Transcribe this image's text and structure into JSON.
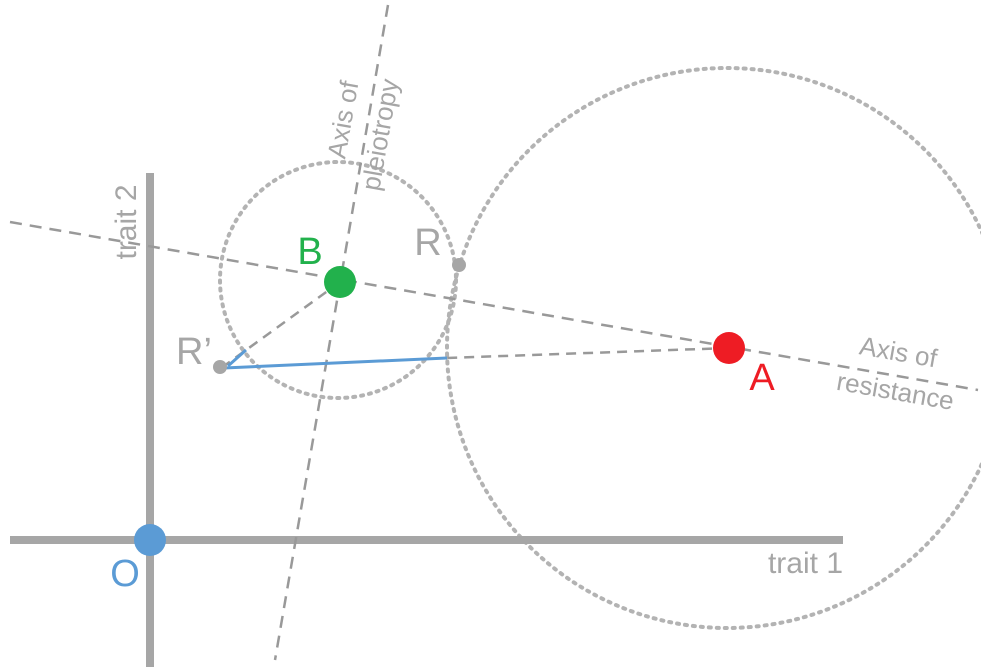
{
  "axes": {
    "x_label": "trait 1",
    "y_label": "trait 2",
    "origin": "O"
  },
  "points": {
    "B": "B",
    "R": "R",
    "R_prime": "R’",
    "A": "A"
  },
  "lines": {
    "pleiotropy": [
      "Axis of",
      "pleiotropy"
    ],
    "resistance": [
      "Axis of",
      "resistance"
    ]
  }
}
